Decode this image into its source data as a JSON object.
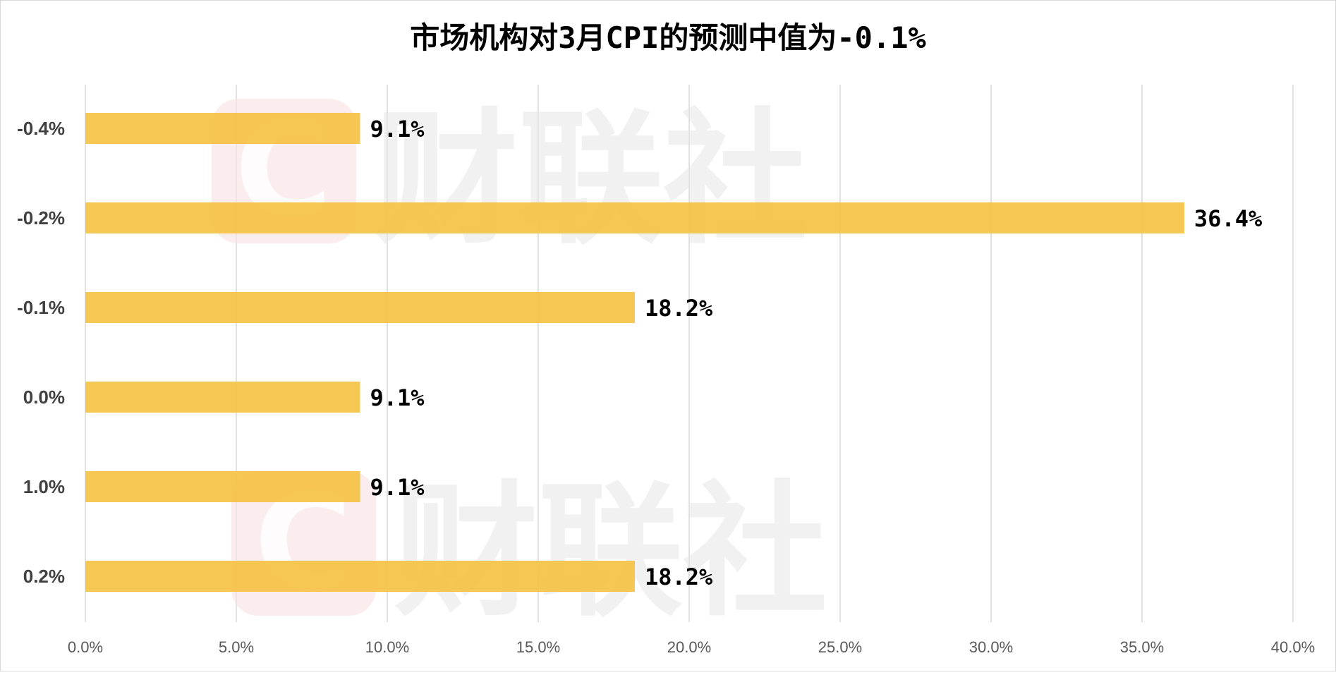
{
  "chart_data": {
    "type": "bar",
    "orientation": "horizontal",
    "title": "市场机构对3月CPI的预测中值为-0.1%",
    "categories": [
      "-0.4%",
      "-0.2%",
      "-0.1%",
      "0.0%",
      "1.0%",
      "0.2%"
    ],
    "values": [
      9.1,
      36.4,
      18.2,
      9.1,
      9.1,
      18.2
    ],
    "data_labels": [
      "9.1%",
      "36.4%",
      "18.2%",
      "9.1%",
      "9.1%",
      "18.2%"
    ],
    "xlim": [
      0,
      40
    ],
    "x_ticks": [
      0,
      5,
      10,
      15,
      20,
      25,
      30,
      35,
      40
    ],
    "x_tick_labels": [
      "0.0%",
      "5.0%",
      "10.0%",
      "15.0%",
      "20.0%",
      "25.0%",
      "30.0%",
      "35.0%",
      "40.0%"
    ],
    "grid": "vertical",
    "legend": "none",
    "colors": {
      "bar": "#F6C244",
      "grid": "#D9D9D9",
      "text": "#000000",
      "tick_text": "#595959"
    }
  },
  "watermark": {
    "logo_letter": "C",
    "text": "财联社",
    "color_logo": "#F9E3E3",
    "color_text": "#EBEBEB"
  }
}
